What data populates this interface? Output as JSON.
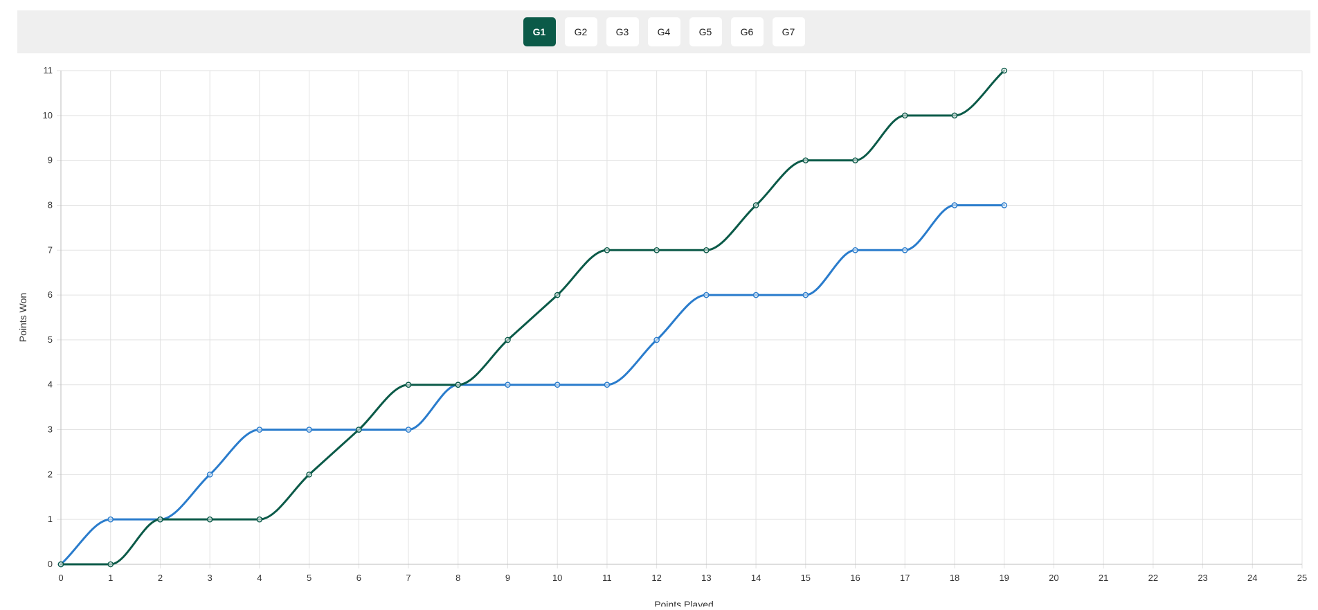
{
  "tabs": [
    {
      "label": "G1",
      "active": true
    },
    {
      "label": "G2",
      "active": false
    },
    {
      "label": "G3",
      "active": false
    },
    {
      "label": "G4",
      "active": false
    },
    {
      "label": "G5",
      "active": false
    },
    {
      "label": "G6",
      "active": false
    },
    {
      "label": "G7",
      "active": false
    }
  ],
  "colors": {
    "series_dark": "#0b5a48",
    "series_blue": "#2a7ccc",
    "grid": "#e2e2e2",
    "axis": "#bdbdbd",
    "active_tab": "#0b5a48"
  },
  "chart_data": {
    "type": "line",
    "title": "",
    "xlabel": "Points Played",
    "ylabel": "Points Won",
    "xlim": [
      0,
      25
    ],
    "ylim": [
      0,
      11
    ],
    "x_ticks": [
      0,
      1,
      2,
      3,
      4,
      5,
      6,
      7,
      8,
      9,
      10,
      11,
      12,
      13,
      14,
      15,
      16,
      17,
      18,
      19,
      20,
      21,
      22,
      23,
      24,
      25
    ],
    "y_ticks": [
      0,
      1,
      2,
      3,
      4,
      5,
      6,
      7,
      8,
      9,
      10,
      11
    ],
    "grid": true,
    "legend": "none",
    "curve": "smooth",
    "series": [
      {
        "color": "#0b5a48",
        "x": [
          0,
          1,
          2,
          3,
          4,
          5,
          6,
          7,
          8,
          9,
          10,
          11,
          12,
          13,
          14,
          15,
          16,
          17,
          18,
          19
        ],
        "values": [
          0,
          0,
          1,
          1,
          1,
          2,
          3,
          4,
          4,
          5,
          6,
          7,
          7,
          7,
          8,
          9,
          9,
          10,
          10,
          11
        ]
      },
      {
        "color": "#2a7ccc",
        "x": [
          0,
          1,
          2,
          3,
          4,
          5,
          6,
          7,
          8,
          9,
          10,
          11,
          12,
          13,
          14,
          15,
          16,
          17,
          18,
          19
        ],
        "values": [
          0,
          1,
          1,
          2,
          3,
          3,
          3,
          3,
          4,
          4,
          4,
          4,
          5,
          6,
          6,
          6,
          7,
          7,
          8,
          8
        ]
      }
    ]
  }
}
